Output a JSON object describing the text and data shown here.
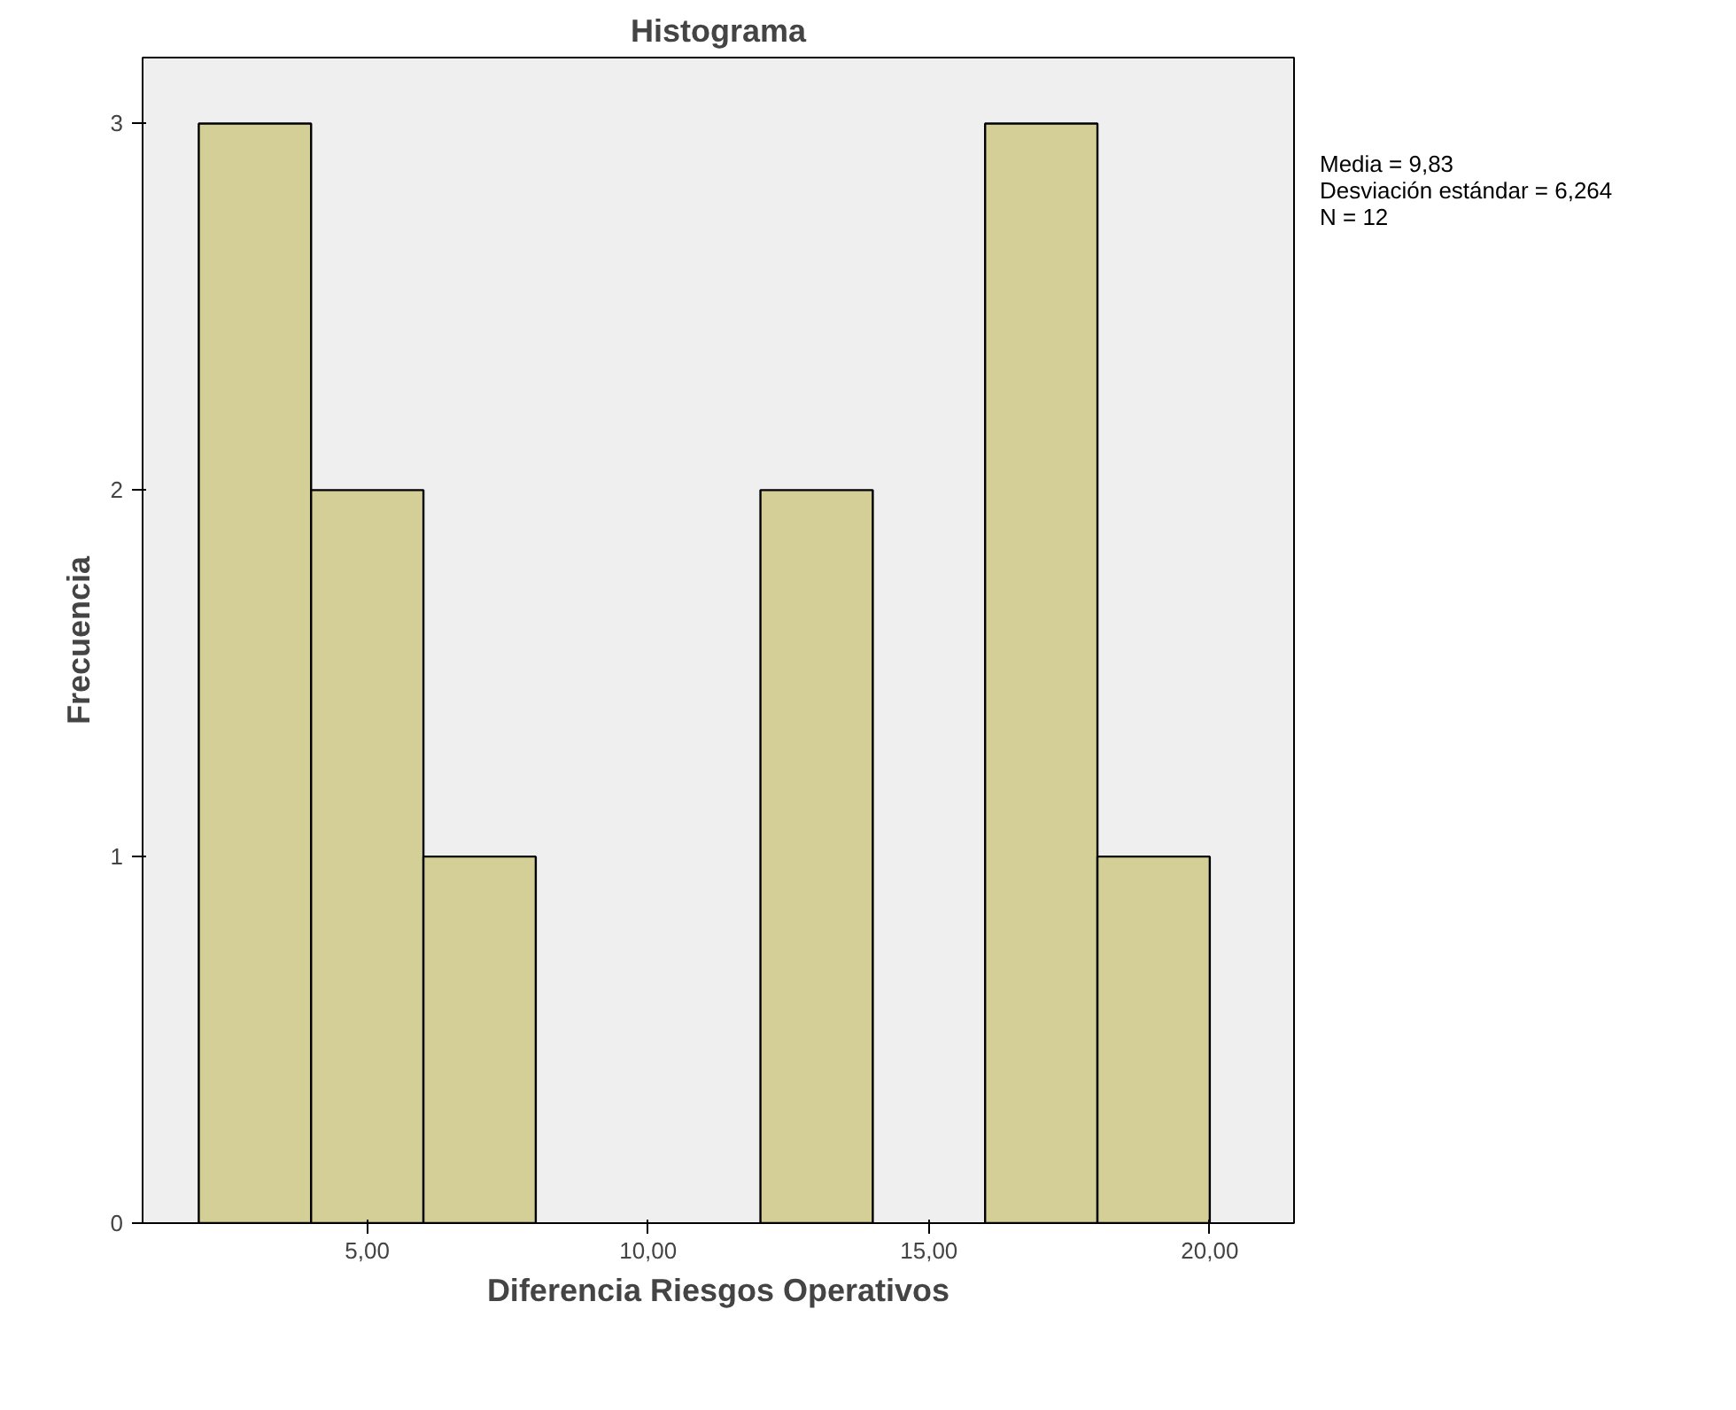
{
  "chart_data": {
    "type": "histogram",
    "title": "Histograma",
    "xlabel": "Diferencia Riesgos Operativos",
    "ylabel": "Frecuencia",
    "bins": [
      2,
      4,
      6,
      8,
      10,
      12,
      14,
      16,
      18,
      20
    ],
    "values": [
      3,
      2,
      1,
      0,
      0,
      2,
      0,
      3,
      1
    ],
    "color": "#d4cf97",
    "xlim": [
      1,
      21.5
    ],
    "ylim": [
      0,
      3.18
    ],
    "xticks": [
      {
        "value": 5,
        "label": "5,00"
      },
      {
        "value": 10,
        "label": "10,00"
      },
      {
        "value": 15,
        "label": "15,00"
      },
      {
        "value": 20,
        "label": "20,00"
      }
    ],
    "yticks": [
      0,
      1,
      2,
      3
    ],
    "grid": false,
    "annotations": [
      "Media = 9,83",
      "Desviación estándar = 6,264",
      "N = 12"
    ]
  }
}
